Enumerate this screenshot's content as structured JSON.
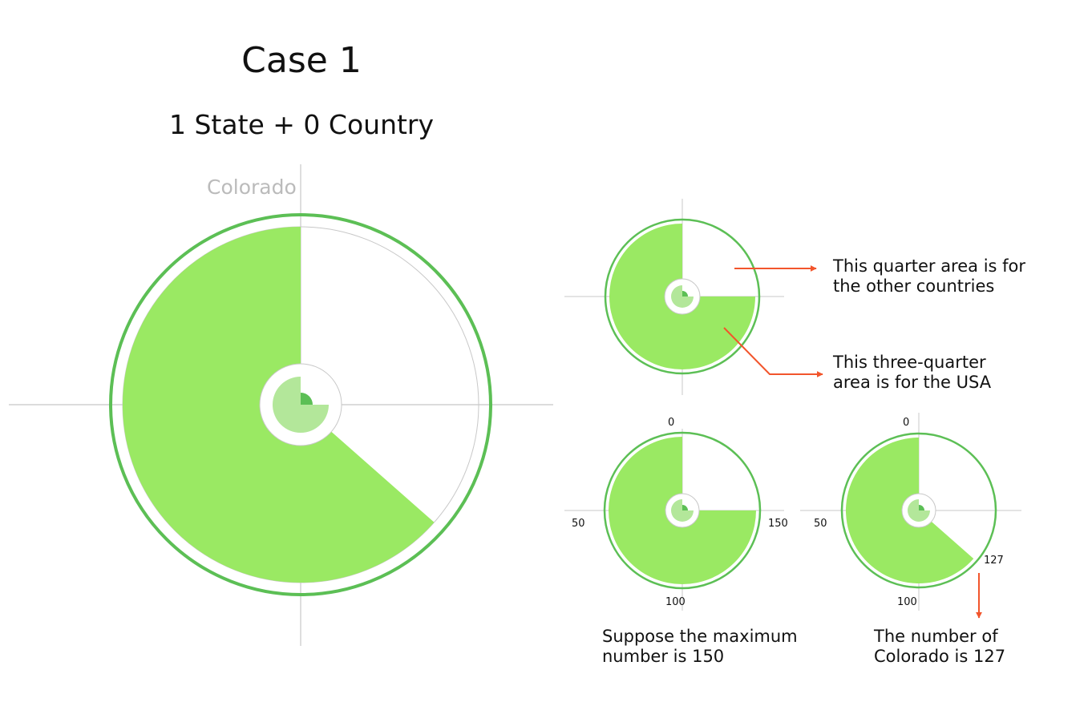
{
  "title": "Case 1",
  "subtitle": "1 State + 0 Country",
  "state_label": "Colorado",
  "colors": {
    "accent_green": "#5cbf55",
    "fill_green": "#9ae963",
    "light_green": "#b3e79a",
    "axis_gray": "#c8c8c8",
    "arrow_red": "#f2552c"
  },
  "annotations": {
    "quarter": [
      "This quarter area is for",
      "the other countries"
    ],
    "three_quarter": [
      "This three-quarter",
      "area is for the USA"
    ],
    "max_note": [
      "Suppose the maximum",
      "number is 150"
    ],
    "colorado_note": [
      "The number of",
      "Colorado is 127"
    ]
  },
  "scale": {
    "max": 150,
    "value": 127
  },
  "ticks": {
    "scale_example": {
      "top": "0",
      "left": "50",
      "bottom": "100",
      "right": "150"
    },
    "value_example": {
      "top": "0",
      "left": "50",
      "bottom": "100",
      "marker": "127"
    }
  }
}
